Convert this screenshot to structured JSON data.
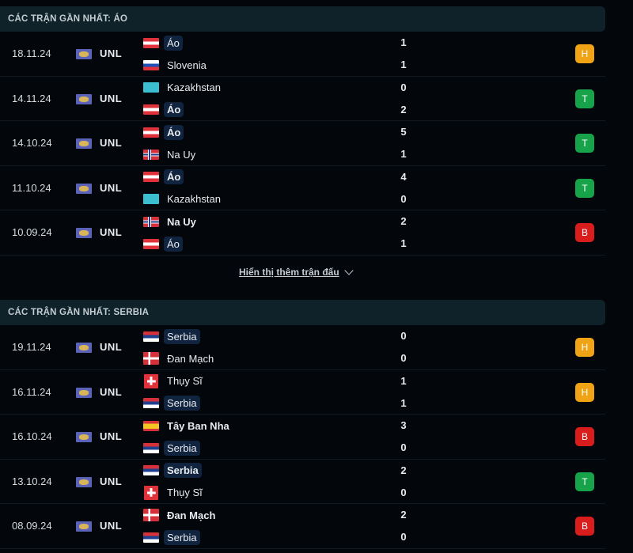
{
  "colors": {
    "H": "#f0a314",
    "T": "#16a34a",
    "B": "#d91c1c"
  },
  "sections": [
    {
      "title": "CÁC TRẬN GẦN NHẤT: ÁO",
      "matches": [
        {
          "date": "18.11.24",
          "league": "UNL",
          "home": {
            "name": "Áo",
            "flag": "AT",
            "highlight": true,
            "bold": false
          },
          "away": {
            "name": "Slovenia",
            "flag": "SI",
            "highlight": false,
            "bold": false
          },
          "home_score": "1",
          "away_score": "1",
          "result": "H"
        },
        {
          "date": "14.11.24",
          "league": "UNL",
          "home": {
            "name": "Kazakhstan",
            "flag": "KZ",
            "highlight": false,
            "bold": false
          },
          "away": {
            "name": "Áo",
            "flag": "AT",
            "highlight": true,
            "bold": true
          },
          "home_score": "0",
          "away_score": "2",
          "result": "T"
        },
        {
          "date": "14.10.24",
          "league": "UNL",
          "home": {
            "name": "Áo",
            "flag": "AT",
            "highlight": true,
            "bold": true
          },
          "away": {
            "name": "Na Uy",
            "flag": "NO",
            "highlight": false,
            "bold": false
          },
          "home_score": "5",
          "away_score": "1",
          "result": "T"
        },
        {
          "date": "11.10.24",
          "league": "UNL",
          "home": {
            "name": "Áo",
            "flag": "AT",
            "highlight": true,
            "bold": true
          },
          "away": {
            "name": "Kazakhstan",
            "flag": "KZ",
            "highlight": false,
            "bold": false
          },
          "home_score": "4",
          "away_score": "0",
          "result": "T"
        },
        {
          "date": "10.09.24",
          "league": "UNL",
          "home": {
            "name": "Na Uy",
            "flag": "NO",
            "highlight": false,
            "bold": true
          },
          "away": {
            "name": "Áo",
            "flag": "AT",
            "highlight": true,
            "bold": false
          },
          "home_score": "2",
          "away_score": "1",
          "result": "B"
        }
      ]
    },
    {
      "title": "CÁC TRẬN GẦN NHẤT: SERBIA",
      "matches": [
        {
          "date": "19.11.24",
          "league": "UNL",
          "home": {
            "name": "Serbia",
            "flag": "RS",
            "highlight": true,
            "bold": false
          },
          "away": {
            "name": "Đan Mạch",
            "flag": "DK",
            "highlight": false,
            "bold": false
          },
          "home_score": "0",
          "away_score": "0",
          "result": "H"
        },
        {
          "date": "16.11.24",
          "league": "UNL",
          "home": {
            "name": "Thụy Sĩ",
            "flag": "CH",
            "highlight": false,
            "bold": false
          },
          "away": {
            "name": "Serbia",
            "flag": "RS",
            "highlight": true,
            "bold": false
          },
          "home_score": "1",
          "away_score": "1",
          "result": "H"
        },
        {
          "date": "16.10.24",
          "league": "UNL",
          "home": {
            "name": "Tây Ban Nha",
            "flag": "ES",
            "highlight": false,
            "bold": true
          },
          "away": {
            "name": "Serbia",
            "flag": "RS",
            "highlight": true,
            "bold": false
          },
          "home_score": "3",
          "away_score": "0",
          "result": "B"
        },
        {
          "date": "13.10.24",
          "league": "UNL",
          "home": {
            "name": "Serbia",
            "flag": "RS",
            "highlight": true,
            "bold": true
          },
          "away": {
            "name": "Thụy Sĩ",
            "flag": "CH",
            "highlight": false,
            "bold": false
          },
          "home_score": "2",
          "away_score": "0",
          "result": "T"
        },
        {
          "date": "08.09.24",
          "league": "UNL",
          "home": {
            "name": "Đan Mạch",
            "flag": "DK",
            "highlight": false,
            "bold": true
          },
          "away": {
            "name": "Serbia",
            "flag": "RS",
            "highlight": true,
            "bold": false
          },
          "home_score": "2",
          "away_score": "0",
          "result": "B"
        }
      ]
    }
  ],
  "show_more": "Hiển thị thêm trận đấu"
}
